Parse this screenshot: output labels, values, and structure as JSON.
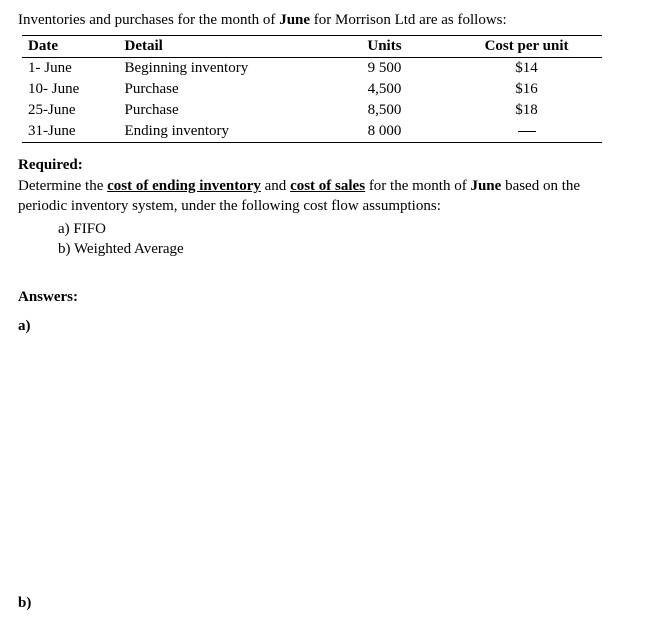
{
  "intro": {
    "prefix": "Inventories and purchases for the month of ",
    "month": "June",
    "suffix": " for Morrison Ltd are as follows:"
  },
  "table": {
    "headers": {
      "date": "Date",
      "detail": "Detail",
      "units": "Units",
      "cost": "Cost per unit"
    },
    "rows": [
      {
        "date": "1- June",
        "detail": "Beginning inventory",
        "units": "9 500",
        "cost": "$14"
      },
      {
        "date": "10- June",
        "detail": "Purchase",
        "units": "4,500",
        "cost": "$16"
      },
      {
        "date": "25-June",
        "detail": "Purchase",
        "units": "8,500",
        "cost": "$18"
      },
      {
        "date": "31-June",
        "detail": "Ending inventory",
        "units": "8 000",
        "cost": ""
      }
    ]
  },
  "required": {
    "heading": "Required:",
    "p1": "Determine the ",
    "u1": "cost of ending inventory",
    "p2": " and ",
    "u2": "cost of sales",
    "p3": " for the month of ",
    "month": "June",
    "p4": " based on the periodic inventory system, under the following cost flow assumptions:",
    "a": "a)   FIFO",
    "b": "b)   Weighted Average"
  },
  "answers": {
    "heading": "Answers:",
    "a": "a)",
    "b": "b)"
  }
}
